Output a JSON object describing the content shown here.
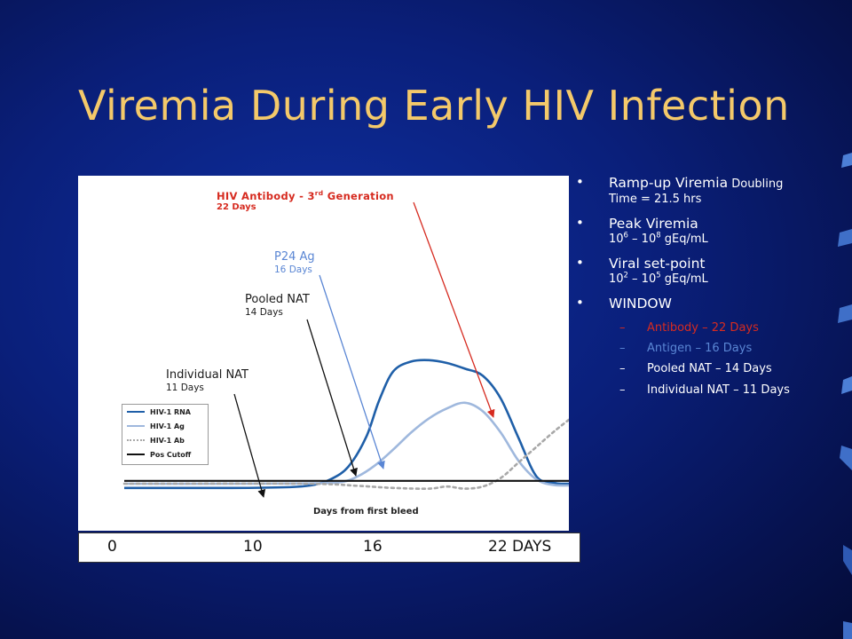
{
  "slide": {
    "title": "Viremia During Early HIV Infection"
  },
  "colors": {
    "title": "#f4c96a",
    "antibody": "#d62b20",
    "antigen": "#5a86d4",
    "rna": "#1f5fa8",
    "ag_curve": "#9fb8dd",
    "ab_curve": "#a8a8a8",
    "cutoff": "#111111"
  },
  "chart_data": {
    "type": "line",
    "xlabel": "Days from first bleed",
    "legend_position": "left",
    "series": [
      {
        "name": "HIV-1 RNA",
        "style": "solid",
        "color": "#1f5fa8",
        "x": [
          0,
          6,
          9,
          10.5,
          11.5,
          12.5,
          13.5,
          14.2,
          15,
          16,
          17,
          18,
          19,
          20,
          21,
          22,
          23,
          24,
          24.6,
          25.5
        ],
        "y": [
          0.7,
          0.7,
          0.75,
          0.9,
          1.3,
          2.2,
          4.3,
          6.8,
          8.9,
          9.6,
          9.7,
          9.5,
          9.1,
          8.6,
          7.0,
          4.2,
          1.5,
          1.05,
          1.0,
          1.0
        ]
      },
      {
        "name": "HIV-1 Ag",
        "style": "solid",
        "color": "#9fb8dd",
        "x": [
          0,
          6,
          10,
          12,
          13,
          14,
          15,
          16,
          17,
          18,
          19,
          20,
          21,
          22,
          23,
          24,
          25.5
        ],
        "y": [
          1.0,
          1.0,
          1.02,
          1.1,
          1.5,
          2.3,
          3.4,
          4.6,
          5.6,
          6.3,
          6.7,
          6.1,
          4.6,
          2.6,
          1.3,
          0.9,
          0.9
        ]
      },
      {
        "name": "HIV-1 Ab",
        "style": "dotted",
        "color": "#a8a8a8",
        "x": [
          0,
          10,
          13,
          15,
          17,
          18,
          19,
          20,
          21,
          22,
          23,
          24,
          25
        ],
        "y": [
          1.0,
          1.0,
          0.85,
          0.7,
          0.65,
          0.8,
          0.65,
          0.8,
          1.4,
          2.5,
          3.6,
          4.7,
          5.7
        ]
      },
      {
        "name": "Pos Cutoff",
        "style": "solid",
        "color": "#111111",
        "x": [
          0,
          25.5
        ],
        "y": [
          1.2,
          1.2
        ]
      }
    ],
    "annotations": [
      {
        "label": "HIV Antibody - 3",
        "sup": "rd",
        "label_after": " Generation",
        "days": "22 Days",
        "color": "#d62b20",
        "x": 22
      },
      {
        "label": "P24 Ag",
        "days": "16 Days",
        "color": "#5a86d4",
        "x": 16
      },
      {
        "label": "Pooled NAT",
        "days": "14 Days",
        "color": "#1b1b1b",
        "x": 14
      },
      {
        "label": "Individual NAT",
        "days": "11 Days",
        "color": "#1b1b1b",
        "x": 11
      }
    ]
  },
  "days_axis": {
    "ticks": [
      "0",
      "10",
      "16",
      "22 DAYS"
    ]
  },
  "bullets": [
    {
      "main": "Ramp-up Viremia",
      "small": " Doubling",
      "sub": "Time = 21.5 hrs"
    },
    {
      "main": "Peak Viremia",
      "sub_pre": "10",
      "sub_sup1": "6",
      "sub_mid": " – 10",
      "sub_sup2": "8",
      "sub_post": " gEq/mL"
    },
    {
      "main": "Viral set-point",
      "sub_pre": "10",
      "sub_sup1": "2",
      "sub_mid": " – 10",
      "sub_sup2": "5",
      "sub_post": " gEq/mL"
    },
    {
      "main": "WINDOW"
    }
  ],
  "window_items": [
    {
      "text": "Antibody – 22 Days",
      "color": "#d62b20"
    },
    {
      "text": "Antigen – 16 Days",
      "color": "#5a86d4"
    },
    {
      "text": "Pooled NAT – 14 Days",
      "color": "#ffffff"
    },
    {
      "text": "Individual NAT – 11 Days",
      "color": "#ffffff"
    }
  ],
  "dash_glyph": "–",
  "bullet_glyph": "•"
}
